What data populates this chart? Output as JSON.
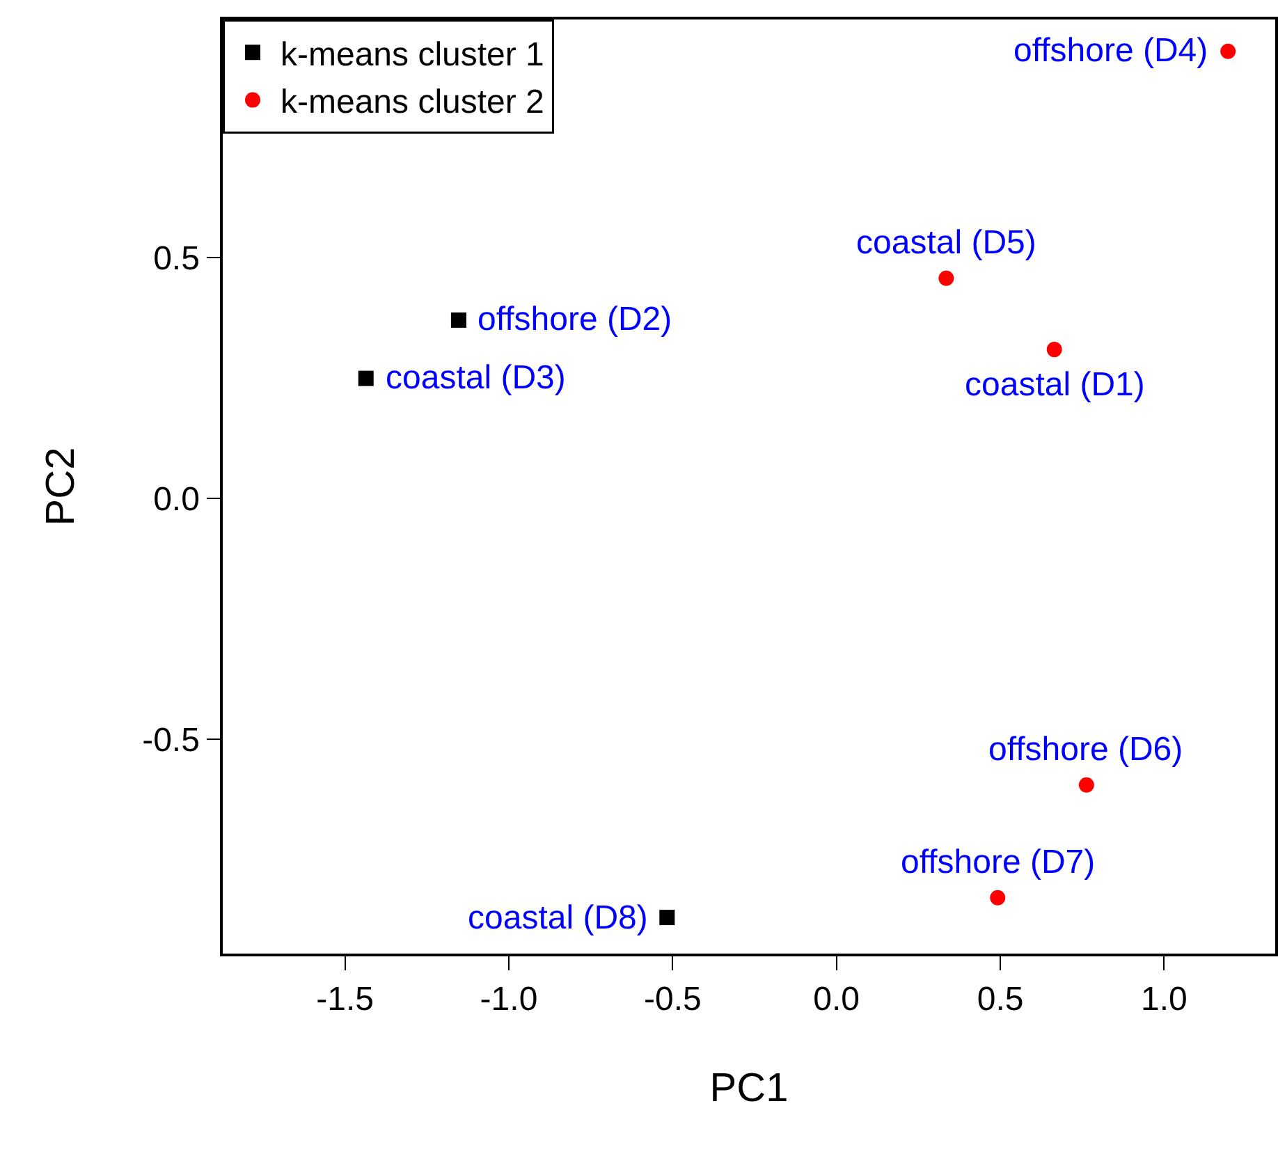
{
  "chart_data": {
    "type": "scatter",
    "xlabel": "PC1",
    "ylabel": "PC2",
    "xlim": [
      -1.873,
      1.339
    ],
    "xticks": [
      {
        "value": -1.5,
        "label": "-1.5"
      },
      {
        "value": -1,
        "label": "-1.0"
      },
      {
        "value": -0.5,
        "label": "-0.5"
      },
      {
        "value": 0,
        "label": "0.0"
      },
      {
        "value": 0.5,
        "label": "0.5"
      },
      {
        "value": 1,
        "label": "1.0"
      }
    ],
    "ylim": [
      -0.945,
      0.994
    ],
    "yticks": [
      {
        "value": -0.5,
        "label": "-0.5"
      },
      {
        "value": 0,
        "label": "0.0"
      },
      {
        "value": 0.5,
        "label": "0.5"
      }
    ],
    "grid": false,
    "legend": "top left",
    "series": [
      {
        "name": "k-means cluster 1",
        "color": "#000000",
        "marker": "square",
        "x": [
          -1.153,
          -1.436,
          -0.517
        ],
        "values": [
          0.37,
          0.249,
          -0.87
        ]
      },
      {
        "name": "k-means cluster 2",
        "color": "#ff0000",
        "marker": "circle",
        "x": [
          1.195,
          0.335,
          0.665,
          0.763,
          0.492
        ],
        "values": [
          0.928,
          0.457,
          0.309,
          -0.595,
          -0.829
        ]
      }
    ],
    "annotations": [
      {
        "text": "offshore (D4)",
        "x": 1.195,
        "y": 0.928
      },
      {
        "text": "coastal (D5)",
        "x": 0.335,
        "y": 0.457
      },
      {
        "text": "coastal (D1)",
        "x": 0.665,
        "y": 0.309
      },
      {
        "text": "offshore (D2)",
        "x": -1.153,
        "y": 0.37
      },
      {
        "text": "coastal (D3)",
        "x": -1.436,
        "y": 0.249
      },
      {
        "text": "offshore (D6)",
        "x": 0.763,
        "y": -0.595
      },
      {
        "text": "offshore (D7)",
        "x": 0.492,
        "y": -0.829
      },
      {
        "text": "coastal (D8)",
        "x": -0.517,
        "y": -0.87
      }
    ]
  }
}
